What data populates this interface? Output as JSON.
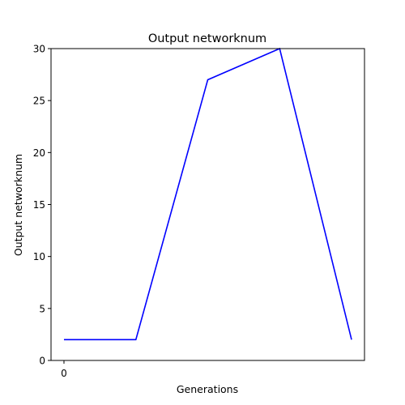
{
  "chart_data": {
    "type": "line",
    "title": "Output networknum",
    "xlabel": "Generations",
    "ylabel": "Output networknum",
    "x": [
      0,
      1,
      2,
      3,
      4
    ],
    "x_tick_values": [
      0
    ],
    "x_tick_labels": [
      "0"
    ],
    "xlim": [
      -0.18,
      4.18
    ],
    "ylim": [
      0,
      30
    ],
    "y_ticks": [
      0,
      5,
      10,
      15,
      20,
      25,
      30
    ],
    "series": [
      {
        "values": [
          2,
          2,
          27,
          30,
          2
        ],
        "color": "#0000ff"
      }
    ],
    "grid": false,
    "legend": "none"
  }
}
